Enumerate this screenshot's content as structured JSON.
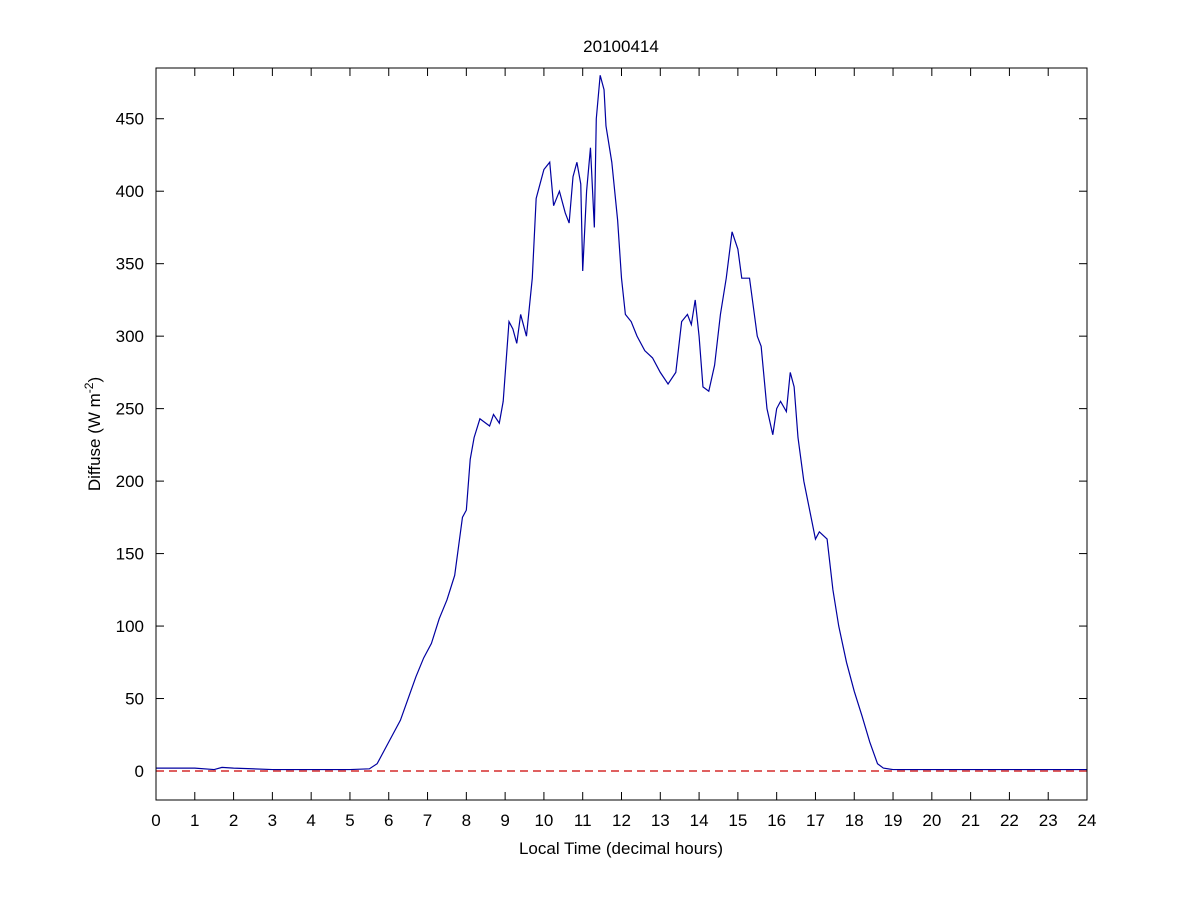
{
  "chart_data": {
    "type": "line",
    "title": "20100414",
    "xlabel": "Local Time (decimal hours)",
    "ylabel": {
      "text": "Diffuse (W m",
      "superscript": "-2",
      "suffix": ")"
    },
    "x": [
      0,
      1,
      1.5,
      1.7,
      2,
      3,
      4,
      5,
      5.5,
      5.7,
      5.9,
      6.1,
      6.3,
      6.5,
      6.7,
      6.9,
      7.1,
      7.3,
      7.5,
      7.7,
      7.8,
      7.9,
      8.0,
      8.1,
      8.2,
      8.35,
      8.5,
      8.6,
      8.7,
      8.85,
      8.95,
      9.1,
      9.2,
      9.3,
      9.4,
      9.55,
      9.7,
      9.8,
      9.9,
      10.0,
      10.15,
      10.25,
      10.4,
      10.55,
      10.65,
      10.75,
      10.85,
      10.95,
      11.0,
      11.1,
      11.2,
      11.3,
      11.35,
      11.45,
      11.55,
      11.6,
      11.75,
      11.9,
      12.0,
      12.1,
      12.25,
      12.4,
      12.6,
      12.8,
      13.0,
      13.2,
      13.4,
      13.55,
      13.7,
      13.8,
      13.9,
      14.0,
      14.1,
      14.25,
      14.4,
      14.55,
      14.7,
      14.85,
      15.0,
      15.1,
      15.3,
      15.5,
      15.6,
      15.75,
      15.9,
      16.0,
      16.1,
      16.25,
      16.35,
      16.45,
      16.55,
      16.7,
      16.85,
      17.0,
      17.1,
      17.3,
      17.45,
      17.6,
      17.8,
      18.0,
      18.2,
      18.4,
      18.6,
      18.75,
      19,
      24
    ],
    "series": [
      {
        "name": "Diffuse",
        "color": "#0000a0",
        "values": [
          2,
          2,
          1,
          2.5,
          2,
          1,
          1,
          1,
          1.5,
          5,
          15,
          25,
          35,
          50,
          65,
          78,
          88,
          105,
          118,
          135,
          155,
          175,
          180,
          215,
          230,
          243,
          240,
          238,
          246,
          240,
          255,
          310,
          305,
          295,
          315,
          300,
          340,
          395,
          405,
          415,
          420,
          390,
          400,
          385,
          378,
          410,
          420,
          405,
          345,
          400,
          430,
          375,
          450,
          480,
          470,
          445,
          420,
          380,
          340,
          315,
          310,
          300,
          290,
          285,
          275,
          267,
          275,
          310,
          315,
          308,
          325,
          300,
          265,
          262,
          280,
          315,
          340,
          372,
          360,
          340,
          340,
          300,
          293,
          250,
          232,
          250,
          255,
          248,
          275,
          265,
          230,
          200,
          180,
          160,
          165,
          160,
          125,
          100,
          75,
          55,
          38,
          20,
          5,
          2,
          1,
          1
        ]
      }
    ],
    "reference_line": {
      "value": 0,
      "color": "#cc0000",
      "dashed": true
    },
    "xlim": [
      0,
      24
    ],
    "xticks": [
      0,
      1,
      2,
      3,
      4,
      5,
      6,
      7,
      8,
      9,
      10,
      11,
      12,
      13,
      14,
      15,
      16,
      17,
      18,
      19,
      20,
      21,
      22,
      23,
      24
    ],
    "ylim": [
      -20,
      485
    ],
    "yticks": [
      0,
      50,
      100,
      150,
      200,
      250,
      300,
      350,
      400,
      450
    ]
  }
}
